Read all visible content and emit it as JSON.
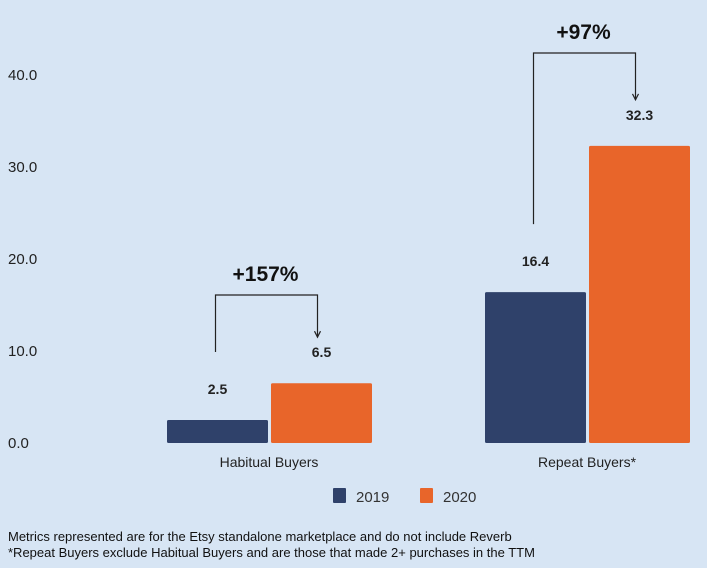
{
  "chart_data": {
    "type": "bar",
    "categories": [
      "Habitual Buyers",
      "Repeat Buyers*"
    ],
    "series": [
      {
        "name": "2019",
        "color": "#2f416a",
        "values": [
          2.5,
          16.4
        ]
      },
      {
        "name": "2020",
        "color": "#e8652a",
        "values": [
          6.5,
          32.3
        ]
      }
    ],
    "value_labels": [
      [
        "2.5",
        "6.5"
      ],
      [
        "16.4",
        "32.3"
      ]
    ],
    "annotations": [
      "+157%",
      "+97%"
    ],
    "yticks": [
      "0.0",
      "10.0",
      "20.0",
      "30.0",
      "40.0"
    ],
    "ylim": [
      0,
      40
    ],
    "grid": false,
    "legend": "bottom-center",
    "title": "",
    "xlabel": "",
    "ylabel": ""
  },
  "footnotes": [
    "Metrics represented are for the Etsy standalone marketplace and do not include Reverb",
    "*Repeat Buyers exclude Habitual Buyers and are those that made 2+ purchases in the TTM"
  ]
}
